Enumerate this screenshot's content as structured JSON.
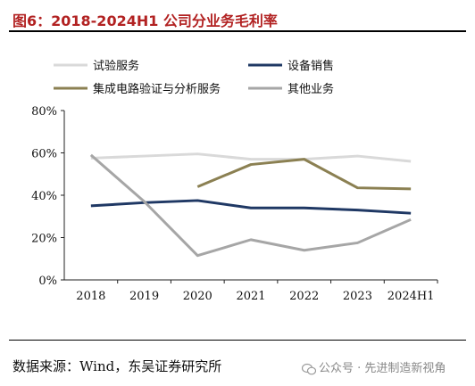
{
  "header": {
    "title": "图6：2018-2024H1 公司分业务毛利率"
  },
  "footer": {
    "source": "数据来源：Wind，东吴证券研究所",
    "watermark": "公众号 · 先进制造新视角"
  },
  "chart_data": {
    "type": "line",
    "title": "图6：2018-2024H1 公司分业务毛利率",
    "categories": [
      "2018",
      "2019",
      "2020",
      "2021",
      "2022",
      "2023",
      "2024H1"
    ],
    "ylim": [
      0,
      80
    ],
    "yticks": [
      "0%",
      "20%",
      "40%",
      "60%",
      "80%"
    ],
    "grid": false,
    "legend": "top",
    "series": [
      {
        "name": "试验服务",
        "color": "#d9d9d9",
        "values": [
          57.5,
          58.5,
          59.5,
          57,
          57,
          58.5,
          56
        ]
      },
      {
        "name": "设备销售",
        "color": "#1f3864",
        "values": [
          35,
          36.5,
          37.5,
          34,
          34,
          33,
          31.5
        ]
      },
      {
        "name": "集成电路验证与分析服务",
        "color": "#8b8052",
        "values": [
          null,
          null,
          44,
          54.5,
          57,
          43.5,
          43
        ]
      },
      {
        "name": "其他业务",
        "color": "#a6a6a6",
        "values": [
          59,
          37,
          11.5,
          19,
          14,
          17.5,
          28.5
        ]
      }
    ]
  }
}
